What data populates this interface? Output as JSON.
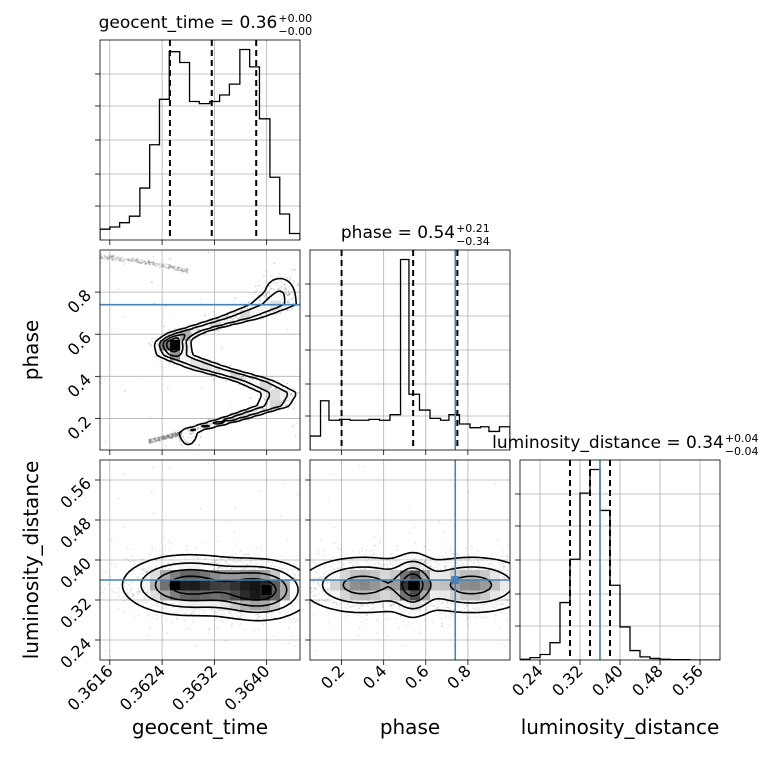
{
  "chart_data": {
    "type": "corner",
    "parameters": [
      "geocent_time",
      "phase",
      "luminosity_distance"
    ],
    "truths": {
      "phase": 0.74,
      "luminosity_distance": 0.36
    },
    "truth_color": "#4682b4",
    "density_color": "#000000",
    "panels": [
      {
        "id": "geocent_time-hist",
        "type": "histogram",
        "parameter": "geocent_time",
        "title": "geocent_time = 0.36",
        "title_sup": "+0.00",
        "title_sub": "−0.00",
        "xlim": [
          0.36145,
          0.36451
        ],
        "bin_edges": [
          0.36145,
          0.3616,
          0.36175,
          0.3619,
          0.36206,
          0.36221,
          0.36236,
          0.36251,
          0.36267,
          0.36282,
          0.36297,
          0.36313,
          0.36328,
          0.36343,
          0.36359,
          0.36374,
          0.36389,
          0.36405,
          0.3642,
          0.36435,
          0.36451
        ],
        "counts": [
          5,
          6,
          8,
          11,
          24,
          44,
          65,
          87,
          82,
          64,
          63,
          64,
          67,
          72,
          88,
          80,
          56,
          29,
          12,
          3
        ],
        "quantiles": [
          0.36252,
          0.36316,
          0.36384
        ]
      },
      {
        "id": "phase-vs-geocent_time",
        "type": "contour2d",
        "x_parameter": "geocent_time",
        "y_parameter": "phase",
        "xlim": [
          0.36145,
          0.36451
        ],
        "ylim": [
          0.05,
          1.0
        ],
        "ridge": {
          "y": [
            0.14,
            0.2,
            0.26,
            0.32,
            0.38,
            0.44,
            0.5,
            0.56,
            0.62,
            0.68,
            0.74,
            0.8
          ],
          "x": [
            0.3628,
            0.3635,
            0.3641,
            0.3642,
            0.3638,
            0.3631,
            0.3626,
            0.3625,
            0.3629,
            0.3636,
            0.3641,
            0.3642
          ],
          "widths": [
            0.0001,
            0.00012,
            0.00015,
            0.00016,
            0.00018,
            0.00019,
            0.00016,
            0.00012,
            0.00014,
            0.0002,
            0.00022,
            0.00016
          ]
        },
        "tail": {
          "upper": {
            "x": [
              0.36145,
              0.3622,
              0.3628
            ],
            "y": [
              0.97,
              0.94,
              0.9
            ]
          },
          "lower": {
            "x": [
              0.3622,
              0.3627
            ],
            "y": [
              0.09,
              0.13
            ]
          }
        },
        "peak": [
          0.3626,
          0.55
        ]
      },
      {
        "id": "phase-hist",
        "type": "histogram",
        "parameter": "phase",
        "title": "phase = 0.54",
        "title_sup": "+0.21",
        "title_sub": "−0.34",
        "xlim": [
          0.05,
          1.0
        ],
        "bin_edges": [
          0.05,
          0.1,
          0.14,
          0.19,
          0.24,
          0.29,
          0.33,
          0.38,
          0.43,
          0.48,
          0.52,
          0.57,
          0.62,
          0.67,
          0.71,
          0.76,
          0.81,
          0.86,
          0.9,
          0.95,
          1.0
        ],
        "counts": [
          15,
          53,
          32,
          33,
          32,
          32,
          33,
          32,
          38,
          205,
          60,
          43,
          34,
          32,
          38,
          28,
          24,
          25,
          20,
          25
        ],
        "quantiles": [
          0.2,
          0.54,
          0.75
        ]
      },
      {
        "id": "luminosity_distance-vs-geocent_time",
        "type": "contour2d",
        "x_parameter": "geocent_time",
        "y_parameter": "luminosity_distance",
        "xlim": [
          0.36145,
          0.36451
        ],
        "ylim": [
          0.2,
          0.6
        ],
        "blobs": [
          {
            "x": 0.3628,
            "y": 0.35,
            "sx": 0.0005,
            "sy": 0.03
          },
          {
            "x": 0.3639,
            "y": 0.34,
            "sx": 0.0004,
            "sy": 0.03
          }
        ],
        "peaks": [
          [
            0.3626,
            0.35
          ],
          [
            0.364,
            0.34
          ]
        ]
      },
      {
        "id": "luminosity_distance-vs-phase",
        "type": "contour2d",
        "x_parameter": "phase",
        "y_parameter": "luminosity_distance",
        "xlim": [
          0.05,
          1.0
        ],
        "ylim": [
          0.2,
          0.6
        ],
        "blobs": [
          {
            "x": 0.3,
            "y": 0.35,
            "sx": 0.16,
            "sy": 0.03
          },
          {
            "x": 0.54,
            "y": 0.35,
            "sx": 0.05,
            "sy": 0.032
          },
          {
            "x": 0.82,
            "y": 0.35,
            "sx": 0.16,
            "sy": 0.03
          }
        ],
        "peaks": [
          [
            0.54,
            0.35
          ]
        ]
      },
      {
        "id": "luminosity_distance-hist",
        "type": "histogram",
        "parameter": "luminosity_distance",
        "title": "luminosity_distance = 0.34",
        "title_sup": "+0.04",
        "title_sub": "−0.04",
        "xlim": [
          0.2,
          0.6
        ],
        "bin_edges": [
          0.2,
          0.22,
          0.24,
          0.26,
          0.28,
          0.3,
          0.32,
          0.34,
          0.36,
          0.38,
          0.4,
          0.42,
          0.44,
          0.46,
          0.48,
          0.5,
          0.52,
          0.54,
          0.56,
          0.58,
          0.6
        ],
        "counts": [
          1,
          3,
          7,
          22,
          73,
          128,
          212,
          242,
          190,
          95,
          42,
          12,
          4,
          2,
          1,
          0.5,
          0.5,
          0,
          0,
          0
        ],
        "quantiles": [
          0.3,
          0.34,
          0.38
        ]
      }
    ],
    "x_ticks": {
      "geocent_time": [
        "0.3616",
        "0.3624",
        "0.3632",
        "0.3640"
      ],
      "phase": [
        "0.2",
        "0.4",
        "0.6",
        "0.8"
      ],
      "luminosity_distance": [
        "0.24",
        "0.32",
        "0.40",
        "0.48",
        "0.56"
      ]
    },
    "y_ticks": {
      "phase": [
        "0.2",
        "0.4",
        "0.6",
        "0.8"
      ],
      "luminosity_distance": [
        "0.24",
        "0.32",
        "0.40",
        "0.48",
        "0.56"
      ]
    },
    "xlabels": [
      "geocent_time",
      "phase",
      "luminosity_distance"
    ],
    "ylabels": [
      "phase",
      "luminosity_distance"
    ],
    "grid": true
  }
}
